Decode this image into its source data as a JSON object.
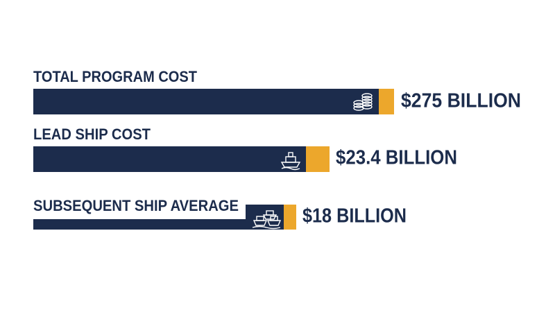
{
  "items": [
    {
      "label": "TOTAL PROGRAM COST",
      "value": "$275 BILLION"
    },
    {
      "label": "LEAD SHIP COST",
      "value": "$23.4 BILLION"
    },
    {
      "label": "SUBSEQUENT SHIP AVERAGE",
      "value": "$18 BILLION"
    }
  ]
}
